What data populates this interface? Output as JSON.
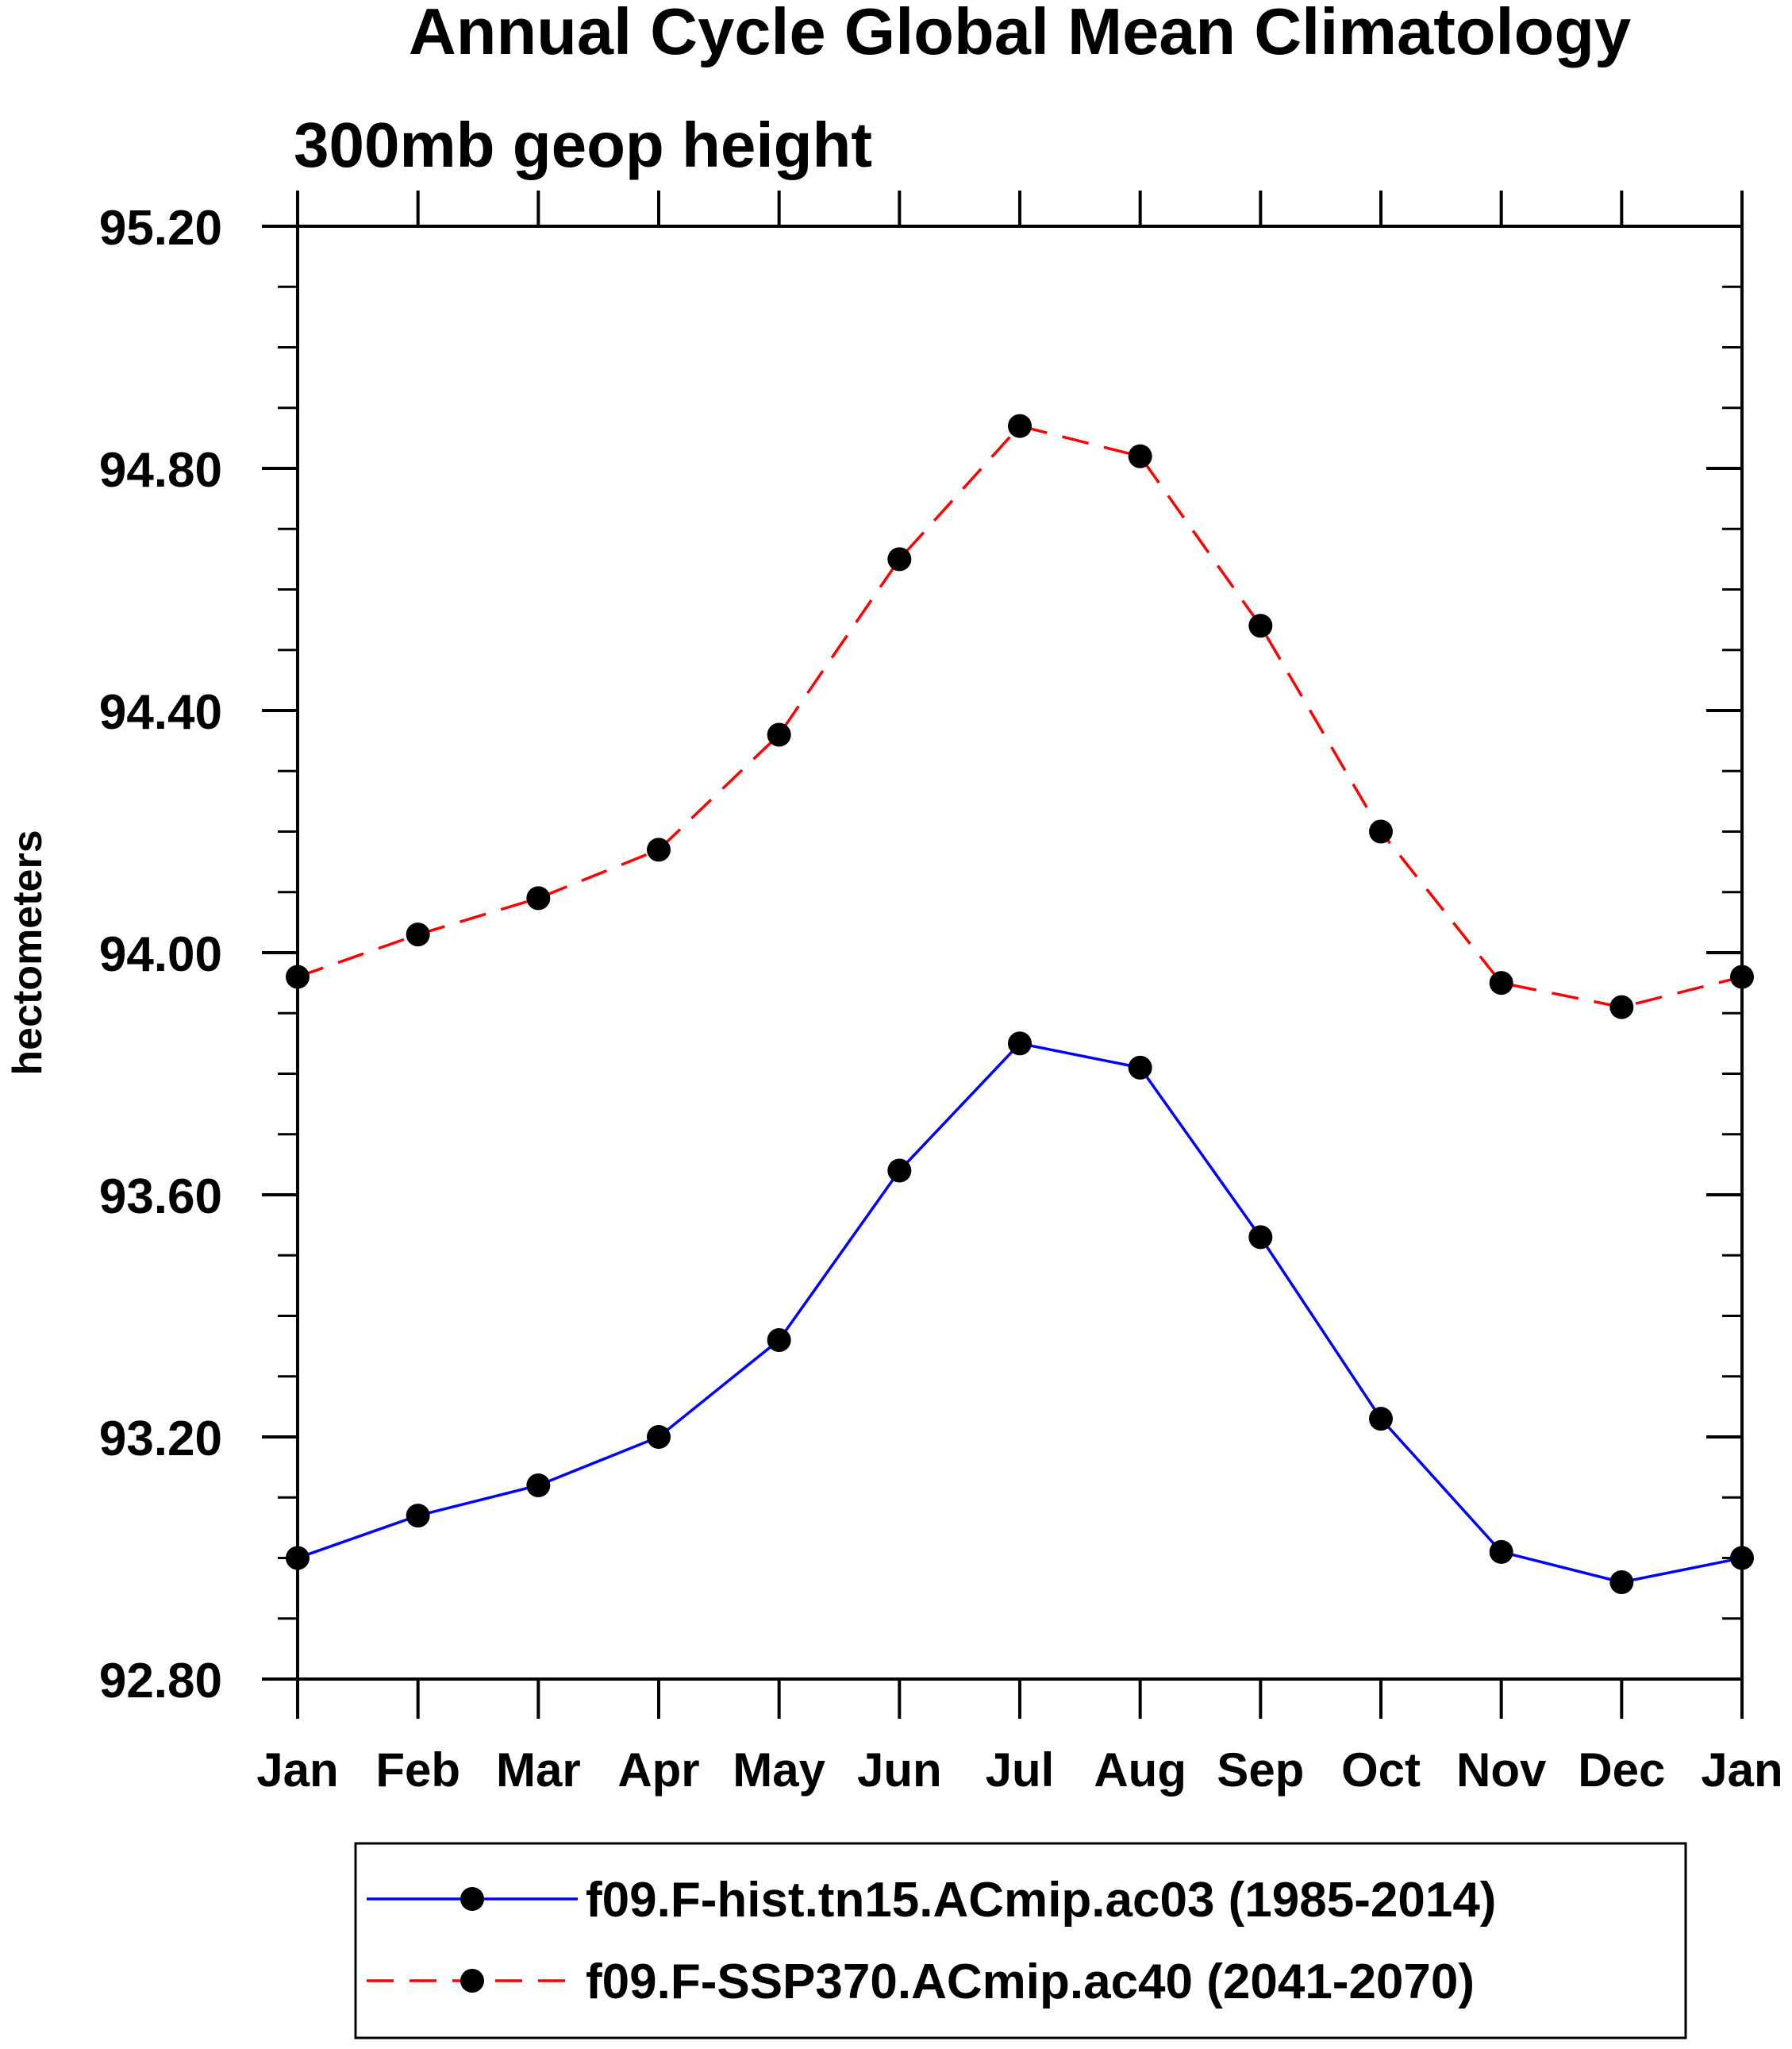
{
  "chart_data": {
    "type": "line",
    "title": "Annual Cycle Global Mean Climatology",
    "subtitle": "300mb geop height",
    "ylabel": "hectometers",
    "xlabel": "",
    "ylim": [
      92.8,
      95.2
    ],
    "y_major_ticks": [
      {
        "value": 92.8,
        "label": "92.80"
      },
      {
        "value": 93.2,
        "label": "93.20"
      },
      {
        "value": 93.6,
        "label": "93.60"
      },
      {
        "value": 94.0,
        "label": "94.00"
      },
      {
        "value": 94.4,
        "label": "94.40"
      },
      {
        "value": 94.8,
        "label": "94.80"
      },
      {
        "value": 95.2,
        "label": "95.20"
      }
    ],
    "y_minor_step": 0.1,
    "categories": [
      "Jan",
      "Feb",
      "Mar",
      "Apr",
      "May",
      "Jun",
      "Jul",
      "Aug",
      "Sep",
      "Oct",
      "Nov",
      "Dec",
      "Jan"
    ],
    "grid": false,
    "legend_position": "bottom",
    "series": [
      {
        "name": "f09.F-hist.tn15.ACmip.ac03 (1985-2014)",
        "color": "#0000ff",
        "line_style": "solid",
        "marker": "filled-circle",
        "values": [
          93.0,
          93.07,
          93.12,
          93.2,
          93.36,
          93.64,
          93.85,
          93.81,
          93.53,
          93.23,
          93.01,
          92.96,
          93.0
        ]
      },
      {
        "name": "f09.F-SSP370.ACmip.ac40 (2041-2070)",
        "color": "#ff0000",
        "line_style": "dashed",
        "marker": "filled-circle",
        "values": [
          93.96,
          94.03,
          94.09,
          94.17,
          94.36,
          94.65,
          94.87,
          94.82,
          94.54,
          94.2,
          93.95,
          93.91,
          93.96
        ]
      }
    ]
  }
}
